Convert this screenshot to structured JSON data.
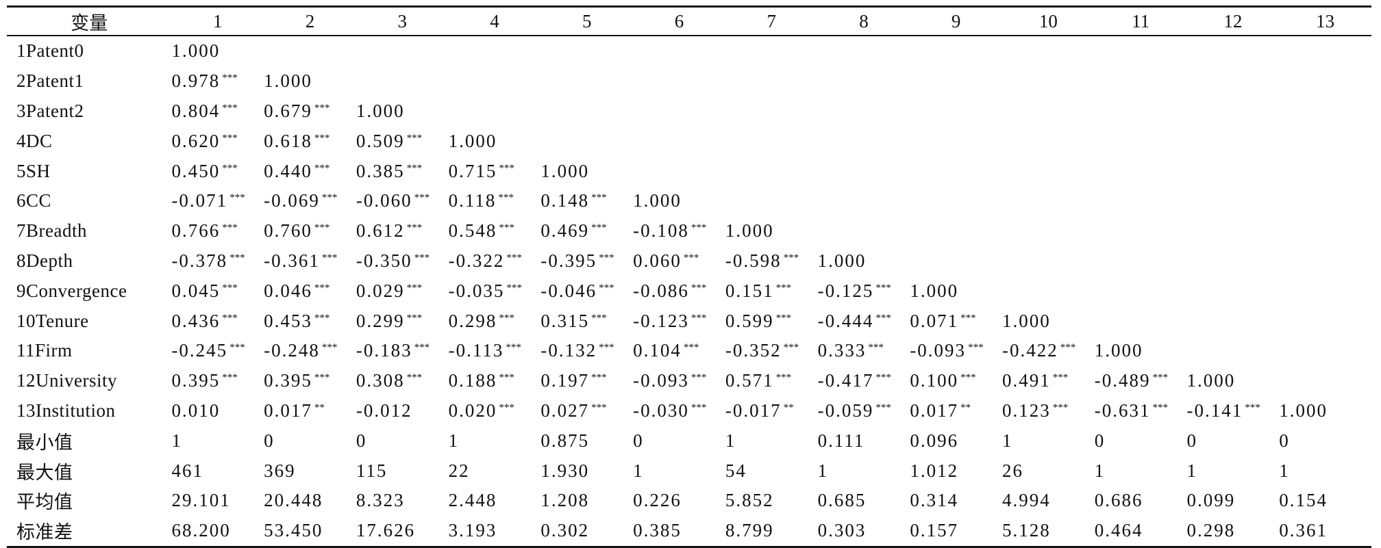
{
  "table": {
    "headers": [
      "变量",
      "1",
      "2",
      "3",
      "4",
      "5",
      "6",
      "7",
      "8",
      "9",
      "10",
      "11",
      "12",
      "13"
    ],
    "rows": [
      {
        "label": "1Patent0",
        "cells": [
          [
            "1.000",
            ""
          ],
          [
            "",
            ""
          ],
          [
            "",
            ""
          ],
          [
            "",
            ""
          ],
          [
            "",
            ""
          ],
          [
            "",
            ""
          ],
          [
            "",
            ""
          ],
          [
            "",
            ""
          ],
          [
            "",
            ""
          ],
          [
            "",
            ""
          ],
          [
            "",
            ""
          ],
          [
            "",
            ""
          ],
          [
            "",
            ""
          ]
        ]
      },
      {
        "label": "2Patent1",
        "cells": [
          [
            "0.978",
            "***"
          ],
          [
            "1.000",
            ""
          ],
          [
            "",
            ""
          ],
          [
            "",
            ""
          ],
          [
            "",
            ""
          ],
          [
            "",
            ""
          ],
          [
            "",
            ""
          ],
          [
            "",
            ""
          ],
          [
            "",
            ""
          ],
          [
            "",
            ""
          ],
          [
            "",
            ""
          ],
          [
            "",
            ""
          ],
          [
            "",
            ""
          ]
        ]
      },
      {
        "label": "3Patent2",
        "cells": [
          [
            "0.804",
            "***"
          ],
          [
            "0.679",
            "***"
          ],
          [
            "1.000",
            ""
          ],
          [
            "",
            ""
          ],
          [
            "",
            ""
          ],
          [
            "",
            ""
          ],
          [
            "",
            ""
          ],
          [
            "",
            ""
          ],
          [
            "",
            ""
          ],
          [
            "",
            ""
          ],
          [
            "",
            ""
          ],
          [
            "",
            ""
          ],
          [
            "",
            ""
          ]
        ]
      },
      {
        "label": "4DC",
        "cells": [
          [
            "0.620",
            "***"
          ],
          [
            "0.618",
            "***"
          ],
          [
            "0.509",
            "***"
          ],
          [
            "1.000",
            ""
          ],
          [
            "",
            ""
          ],
          [
            "",
            ""
          ],
          [
            "",
            ""
          ],
          [
            "",
            ""
          ],
          [
            "",
            ""
          ],
          [
            "",
            ""
          ],
          [
            "",
            ""
          ],
          [
            "",
            ""
          ],
          [
            "",
            ""
          ]
        ]
      },
      {
        "label": "5SH",
        "cells": [
          [
            "0.450",
            "***"
          ],
          [
            "0.440",
            "***"
          ],
          [
            "0.385",
            "***"
          ],
          [
            "0.715",
            "***"
          ],
          [
            "1.000",
            ""
          ],
          [
            "",
            ""
          ],
          [
            "",
            ""
          ],
          [
            "",
            ""
          ],
          [
            "",
            ""
          ],
          [
            "",
            ""
          ],
          [
            "",
            ""
          ],
          [
            "",
            ""
          ],
          [
            "",
            ""
          ]
        ]
      },
      {
        "label": "6CC",
        "cells": [
          [
            "-0.071",
            "***"
          ],
          [
            "-0.069",
            "***"
          ],
          [
            "-0.060",
            "***"
          ],
          [
            "0.118",
            "***"
          ],
          [
            "0.148",
            "***"
          ],
          [
            "1.000",
            ""
          ],
          [
            "",
            ""
          ],
          [
            "",
            ""
          ],
          [
            "",
            ""
          ],
          [
            "",
            ""
          ],
          [
            "",
            ""
          ],
          [
            "",
            ""
          ],
          [
            "",
            ""
          ]
        ]
      },
      {
        "label": "7Breadth",
        "cells": [
          [
            "0.766",
            "***"
          ],
          [
            "0.760",
            "***"
          ],
          [
            "0.612",
            "***"
          ],
          [
            "0.548",
            "***"
          ],
          [
            "0.469",
            "***"
          ],
          [
            "-0.108",
            "***"
          ],
          [
            "1.000",
            ""
          ],
          [
            "",
            ""
          ],
          [
            "",
            ""
          ],
          [
            "",
            ""
          ],
          [
            "",
            ""
          ],
          [
            "",
            ""
          ],
          [
            "",
            ""
          ]
        ]
      },
      {
        "label": "8Depth",
        "cells": [
          [
            "-0.378",
            "***"
          ],
          [
            "-0.361",
            "***"
          ],
          [
            "-0.350",
            "***"
          ],
          [
            "-0.322",
            "***"
          ],
          [
            "-0.395",
            "***"
          ],
          [
            "0.060",
            "***"
          ],
          [
            "-0.598",
            "***"
          ],
          [
            "1.000",
            ""
          ],
          [
            "",
            ""
          ],
          [
            "",
            ""
          ],
          [
            "",
            ""
          ],
          [
            "",
            ""
          ],
          [
            "",
            ""
          ]
        ]
      },
      {
        "label": "9Convergence",
        "cells": [
          [
            "0.045",
            "***"
          ],
          [
            "0.046",
            "***"
          ],
          [
            "0.029",
            "***"
          ],
          [
            "-0.035",
            "***"
          ],
          [
            "-0.046",
            "***"
          ],
          [
            "-0.086",
            "***"
          ],
          [
            "0.151",
            "***"
          ],
          [
            "-0.125",
            "***"
          ],
          [
            "1.000",
            ""
          ],
          [
            "",
            ""
          ],
          [
            "",
            ""
          ],
          [
            "",
            ""
          ],
          [
            "",
            ""
          ]
        ]
      },
      {
        "label": "10Tenure",
        "cells": [
          [
            "0.436",
            "***"
          ],
          [
            "0.453",
            "***"
          ],
          [
            "0.299",
            "***"
          ],
          [
            "0.298",
            "***"
          ],
          [
            "0.315",
            "***"
          ],
          [
            "-0.123",
            "***"
          ],
          [
            "0.599",
            "***"
          ],
          [
            "-0.444",
            "***"
          ],
          [
            "0.071",
            "***"
          ],
          [
            "1.000",
            ""
          ],
          [
            "",
            ""
          ],
          [
            "",
            ""
          ],
          [
            "",
            ""
          ]
        ]
      },
      {
        "label": "11Firm",
        "cells": [
          [
            "-0.245",
            "***"
          ],
          [
            "-0.248",
            "***"
          ],
          [
            "-0.183",
            "***"
          ],
          [
            "-0.113",
            "***"
          ],
          [
            "-0.132",
            "***"
          ],
          [
            "0.104",
            "***"
          ],
          [
            "-0.352",
            "***"
          ],
          [
            "0.333",
            "***"
          ],
          [
            "-0.093",
            "***"
          ],
          [
            "-0.422",
            "***"
          ],
          [
            "1.000",
            ""
          ],
          [
            "",
            ""
          ],
          [
            "",
            ""
          ]
        ]
      },
      {
        "label": "12University",
        "cells": [
          [
            "0.395",
            "***"
          ],
          [
            "0.395",
            "***"
          ],
          [
            "0.308",
            "***"
          ],
          [
            "0.188",
            "***"
          ],
          [
            "0.197",
            "***"
          ],
          [
            "-0.093",
            "***"
          ],
          [
            "0.571",
            "***"
          ],
          [
            "-0.417",
            "***"
          ],
          [
            "0.100",
            "***"
          ],
          [
            "0.491",
            "***"
          ],
          [
            "-0.489",
            "***"
          ],
          [
            "1.000",
            ""
          ],
          [
            "",
            ""
          ]
        ]
      },
      {
        "label": "13Institution",
        "cells": [
          [
            "0.010",
            ""
          ],
          [
            "0.017",
            "**"
          ],
          [
            "-0.012",
            ""
          ],
          [
            "0.020",
            "***"
          ],
          [
            "0.027",
            "***"
          ],
          [
            "-0.030",
            "***"
          ],
          [
            "-0.017",
            "**"
          ],
          [
            "-0.059",
            "***"
          ],
          [
            "0.017",
            "**"
          ],
          [
            "0.123",
            "***"
          ],
          [
            "-0.631",
            "***"
          ],
          [
            "-0.141",
            "***"
          ],
          [
            "1.000",
            ""
          ]
        ]
      },
      {
        "label": "最小值",
        "cells": [
          [
            "1",
            ""
          ],
          [
            "0",
            ""
          ],
          [
            "0",
            ""
          ],
          [
            "1",
            ""
          ],
          [
            "0.875",
            ""
          ],
          [
            "0",
            ""
          ],
          [
            "1",
            ""
          ],
          [
            "0.111",
            ""
          ],
          [
            "0.096",
            ""
          ],
          [
            "1",
            ""
          ],
          [
            "0",
            ""
          ],
          [
            "0",
            ""
          ],
          [
            "0",
            ""
          ]
        ]
      },
      {
        "label": "最大值",
        "cells": [
          [
            "461",
            ""
          ],
          [
            "369",
            ""
          ],
          [
            "115",
            ""
          ],
          [
            "22",
            ""
          ],
          [
            "1.930",
            ""
          ],
          [
            "1",
            ""
          ],
          [
            "54",
            ""
          ],
          [
            "1",
            ""
          ],
          [
            "1.012",
            ""
          ],
          [
            "26",
            ""
          ],
          [
            "1",
            ""
          ],
          [
            "1",
            ""
          ],
          [
            "1",
            ""
          ]
        ]
      },
      {
        "label": "平均值",
        "cells": [
          [
            "29.101",
            ""
          ],
          [
            "20.448",
            ""
          ],
          [
            "8.323",
            ""
          ],
          [
            "2.448",
            ""
          ],
          [
            "1.208",
            ""
          ],
          [
            "0.226",
            ""
          ],
          [
            "5.852",
            ""
          ],
          [
            "0.685",
            ""
          ],
          [
            "0.314",
            ""
          ],
          [
            "4.994",
            ""
          ],
          [
            "0.686",
            ""
          ],
          [
            "0.099",
            ""
          ],
          [
            "0.154",
            ""
          ]
        ]
      },
      {
        "label": "标准差",
        "cells": [
          [
            "68.200",
            ""
          ],
          [
            "53.450",
            ""
          ],
          [
            "17.626",
            ""
          ],
          [
            "3.193",
            ""
          ],
          [
            "0.302",
            ""
          ],
          [
            "0.385",
            ""
          ],
          [
            "8.799",
            ""
          ],
          [
            "0.303",
            ""
          ],
          [
            "0.157",
            ""
          ],
          [
            "5.128",
            ""
          ],
          [
            "0.464",
            ""
          ],
          [
            "0.298",
            ""
          ],
          [
            "0.361",
            ""
          ]
        ]
      }
    ]
  }
}
